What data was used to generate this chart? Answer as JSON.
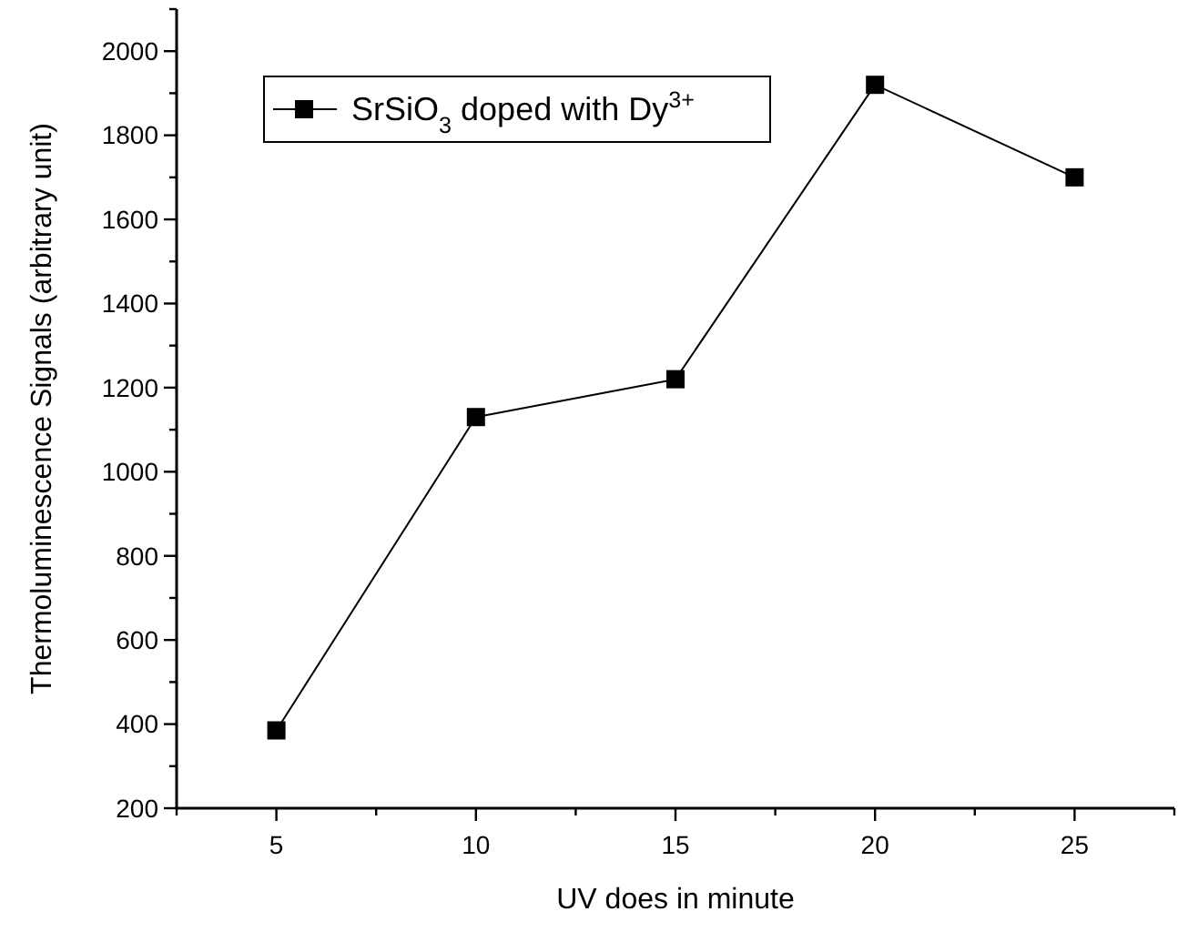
{
  "chart_data": {
    "type": "line",
    "xlabel": "UV does in minute",
    "ylabel": "Thermoluminescence Signals (arbitrary unit)",
    "x": [
      5,
      10,
      15,
      20,
      25
    ],
    "series": [
      {
        "name": "SrSiO$_{3}$ doped with Dy$^{3+}$",
        "color": "#000000",
        "values": [
          385,
          1130,
          1220,
          1920,
          1700
        ]
      }
    ],
    "xlim": [
      2.5,
      27.5
    ],
    "xticks": [
      {
        "value": 2.5,
        "label": null
      },
      5,
      {
        "value": 7.5,
        "label": null
      },
      10,
      {
        "value": 12.5,
        "label": null
      },
      15,
      {
        "value": 17.5,
        "label": null
      },
      20,
      {
        "value": 22.5,
        "label": null
      },
      25,
      {
        "value": 27.5,
        "label": null
      }
    ],
    "ylim": [
      200,
      2100
    ],
    "yticks": [
      200,
      {
        "value": 300,
        "label": null
      },
      400,
      {
        "value": 500,
        "label": null
      },
      600,
      {
        "value": 700,
        "label": null
      },
      800,
      {
        "value": 900,
        "label": null
      },
      1000,
      {
        "value": 1100,
        "label": null
      },
      1200,
      {
        "value": 1300,
        "label": null
      },
      1400,
      {
        "value": 1500,
        "label": null
      },
      1600,
      {
        "value": 1700,
        "label": null
      },
      1800,
      {
        "value": 1900,
        "label": null
      },
      2000,
      {
        "value": 2100,
        "label": null
      }
    ],
    "grid": false,
    "legend": "top left",
    "marker": "square",
    "line_style": "solid"
  }
}
